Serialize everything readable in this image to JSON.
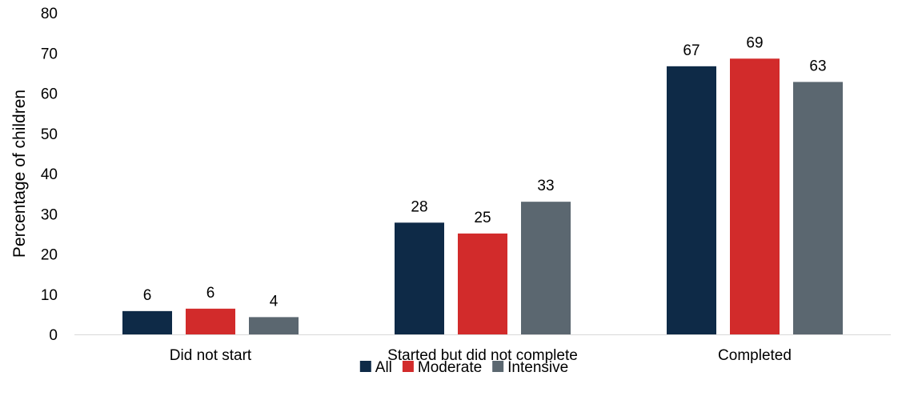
{
  "chart_data": {
    "type": "bar",
    "title": "",
    "xlabel": "",
    "ylabel": "Percentage of children",
    "ylim": [
      0,
      80
    ],
    "yticks": [
      0,
      10,
      20,
      30,
      40,
      50,
      60,
      70,
      80
    ],
    "grid": false,
    "legend_position": "bottom",
    "categories": [
      "Did not start",
      "Started but did not complete",
      "Completed"
    ],
    "series": [
      {
        "name": "All",
        "color": "#0e2a47",
        "values": [
          5.8,
          27.8,
          66.7
        ],
        "labels": [
          "6",
          "28",
          "67"
        ]
      },
      {
        "name": "Moderate",
        "color": "#d22b2b",
        "values": [
          6.4,
          25.1,
          68.6
        ],
        "labels": [
          "6",
          "25",
          "69"
        ]
      },
      {
        "name": "Intensive",
        "color": "#5b6770",
        "values": [
          4.3,
          33.0,
          62.8
        ],
        "labels": [
          "4",
          "33",
          "63"
        ]
      }
    ]
  }
}
